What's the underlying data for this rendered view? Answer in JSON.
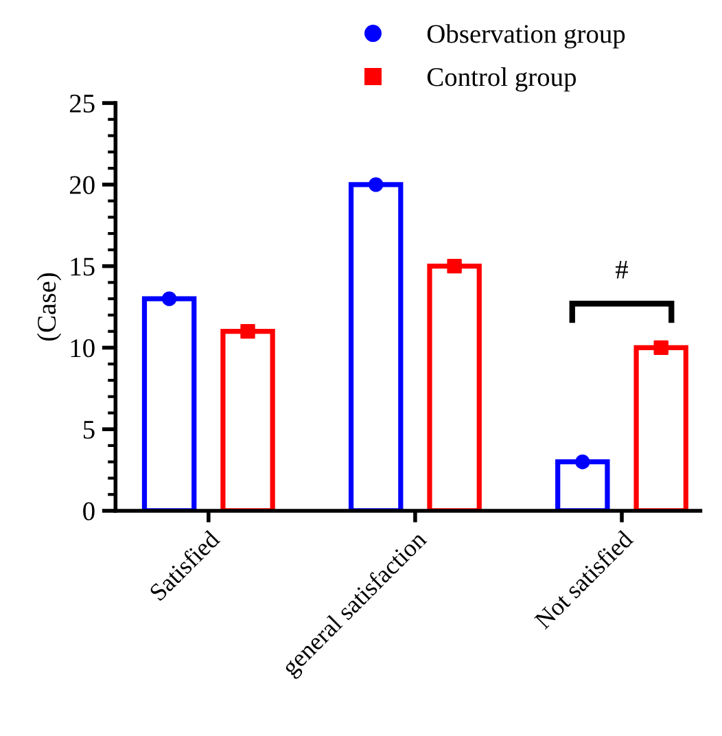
{
  "chart_data": {
    "type": "bar",
    "ylabel": "(Case)",
    "categories": [
      "Satisfied",
      "general satisfaction",
      "Not satisfied"
    ],
    "series": [
      {
        "name": "Observation group",
        "color": "#0000ff",
        "values": [
          13,
          20,
          3
        ],
        "marker": "circle"
      },
      {
        "name": "Control group",
        "color": "#ff0000",
        "values": [
          11,
          15,
          10
        ],
        "marker": "square"
      }
    ],
    "ylim": [
      0,
      25
    ],
    "yticks": [
      0,
      5,
      10,
      15,
      20,
      25
    ],
    "grid": false,
    "legend": "top right",
    "annotations": [
      "#"
    ]
  }
}
